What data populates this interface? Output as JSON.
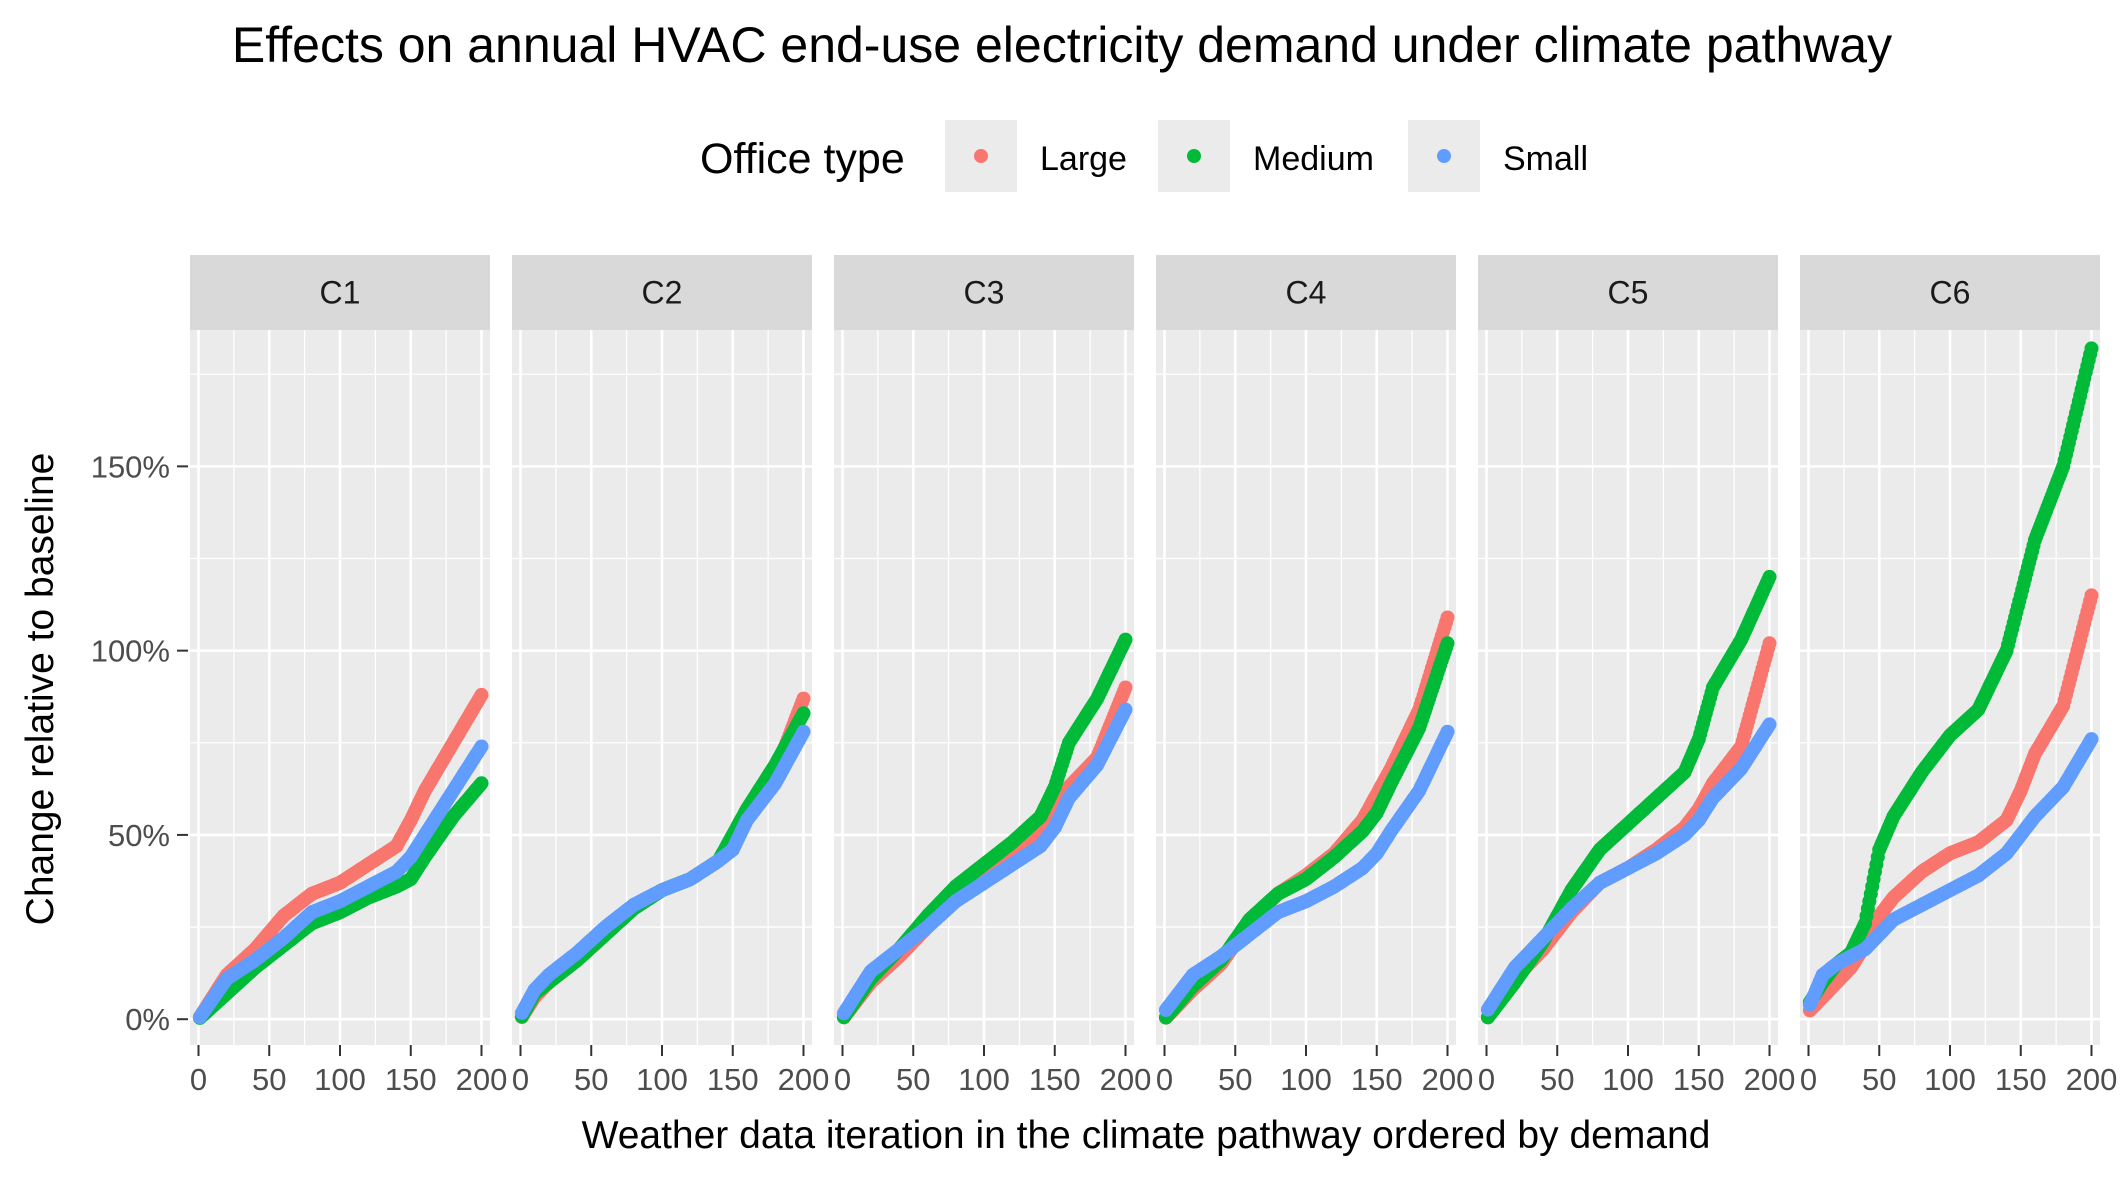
{
  "chart_data": {
    "type": "scatter",
    "title": "Effects on annual HVAC end-use electricity demand under climate pathway",
    "xlabel": "Weather data iteration in the climate pathway ordered by demand",
    "ylabel": "Change relative to baseline",
    "legend": {
      "title": "Office type",
      "placement": "top",
      "entries": [
        "Large",
        "Medium",
        "Small"
      ]
    },
    "colors": {
      "Large": "#f8766d",
      "Medium": "#00ba38",
      "Small": "#619cff"
    },
    "grid": true,
    "xlim": [
      -6,
      206
    ],
    "ylim": [
      -0.07,
      1.87
    ],
    "x_ticks": [
      0,
      50,
      100,
      150,
      200
    ],
    "x_tick_labels": [
      "0",
      "50",
      "100",
      "150",
      "200"
    ],
    "y_ticks": [
      0,
      0.5,
      1.0,
      1.5
    ],
    "y_tick_labels": [
      "0%",
      "50%",
      "100%",
      "150%"
    ],
    "n_points_per_series": 200,
    "panels": [
      {
        "label": "C1",
        "series": [
          {
            "name": "Large",
            "x": [
              0,
              20,
              40,
              60,
              80,
              100,
              120,
              140,
              150,
              160,
              180,
              200
            ],
            "y": [
              0.0,
              0.12,
              0.19,
              0.28,
              0.34,
              0.37,
              0.42,
              0.47,
              0.54,
              0.62,
              0.75,
              0.88
            ]
          },
          {
            "name": "Medium",
            "x": [
              0,
              20,
              40,
              60,
              80,
              100,
              120,
              140,
              150,
              160,
              180,
              200
            ],
            "y": [
              0.0,
              0.07,
              0.14,
              0.2,
              0.26,
              0.29,
              0.33,
              0.36,
              0.38,
              0.44,
              0.55,
              0.64
            ]
          },
          {
            "name": "Small",
            "x": [
              0,
              20,
              40,
              60,
              80,
              100,
              120,
              140,
              150,
              160,
              180,
              200
            ],
            "y": [
              0.0,
              0.11,
              0.16,
              0.22,
              0.29,
              0.32,
              0.36,
              0.4,
              0.44,
              0.5,
              0.62,
              0.74
            ]
          }
        ]
      },
      {
        "label": "C2",
        "series": [
          {
            "name": "Large",
            "x": [
              0,
              10,
              20,
              40,
              60,
              80,
              100,
              120,
              140,
              150,
              160,
              180,
              200
            ],
            "y": [
              0.0,
              0.06,
              0.1,
              0.16,
              0.23,
              0.3,
              0.35,
              0.38,
              0.43,
              0.48,
              0.56,
              0.67,
              0.87
            ]
          },
          {
            "name": "Medium",
            "x": [
              0,
              10,
              20,
              40,
              60,
              80,
              100,
              120,
              140,
              150,
              160,
              180,
              200
            ],
            "y": [
              0.0,
              0.07,
              0.1,
              0.16,
              0.23,
              0.3,
              0.35,
              0.38,
              0.43,
              0.5,
              0.57,
              0.69,
              0.83
            ]
          },
          {
            "name": "Small",
            "x": [
              0,
              10,
              20,
              40,
              60,
              80,
              100,
              120,
              140,
              150,
              160,
              180,
              200
            ],
            "y": [
              0.01,
              0.08,
              0.12,
              0.18,
              0.25,
              0.31,
              0.35,
              0.38,
              0.43,
              0.46,
              0.54,
              0.64,
              0.78
            ]
          }
        ]
      },
      {
        "label": "C3",
        "series": [
          {
            "name": "Large",
            "x": [
              0,
              20,
              40,
              60,
              80,
              100,
              120,
              140,
              150,
              160,
              180,
              200
            ],
            "y": [
              0.0,
              0.1,
              0.17,
              0.25,
              0.33,
              0.39,
              0.45,
              0.51,
              0.56,
              0.63,
              0.71,
              0.9
            ]
          },
          {
            "name": "Medium",
            "x": [
              0,
              20,
              40,
              60,
              80,
              100,
              120,
              140,
              150,
              160,
              180,
              200
            ],
            "y": [
              0.0,
              0.11,
              0.19,
              0.28,
              0.36,
              0.42,
              0.48,
              0.55,
              0.63,
              0.75,
              0.87,
              1.03
            ]
          },
          {
            "name": "Small",
            "x": [
              0,
              20,
              40,
              60,
              80,
              100,
              120,
              140,
              150,
              160,
              180,
              200
            ],
            "y": [
              0.01,
              0.13,
              0.19,
              0.25,
              0.32,
              0.37,
              0.42,
              0.47,
              0.52,
              0.6,
              0.69,
              0.84
            ]
          }
        ]
      },
      {
        "label": "C4",
        "series": [
          {
            "name": "Large",
            "x": [
              0,
              20,
              40,
              60,
              80,
              100,
              120,
              140,
              150,
              160,
              180,
              200
            ],
            "y": [
              0.0,
              0.08,
              0.15,
              0.26,
              0.34,
              0.39,
              0.45,
              0.54,
              0.61,
              0.68,
              0.84,
              1.09
            ]
          },
          {
            "name": "Medium",
            "x": [
              0,
              20,
              40,
              60,
              80,
              100,
              120,
              140,
              150,
              160,
              180,
              200
            ],
            "y": [
              0.0,
              0.09,
              0.16,
              0.27,
              0.34,
              0.38,
              0.44,
              0.51,
              0.56,
              0.64,
              0.79,
              1.02
            ]
          },
          {
            "name": "Small",
            "x": [
              0,
              20,
              40,
              60,
              80,
              100,
              120,
              140,
              150,
              160,
              180,
              200
            ],
            "y": [
              0.02,
              0.12,
              0.17,
              0.23,
              0.29,
              0.32,
              0.36,
              0.41,
              0.45,
              0.51,
              0.62,
              0.78
            ]
          }
        ]
      },
      {
        "label": "C5",
        "series": [
          {
            "name": "Large",
            "x": [
              0,
              20,
              40,
              60,
              80,
              100,
              120,
              140,
              150,
              160,
              180,
              200
            ],
            "y": [
              0.0,
              0.11,
              0.19,
              0.29,
              0.37,
              0.41,
              0.46,
              0.52,
              0.57,
              0.64,
              0.74,
              1.02
            ]
          },
          {
            "name": "Medium",
            "x": [
              0,
              20,
              40,
              60,
              80,
              100,
              120,
              140,
              150,
              160,
              180,
              200
            ],
            "y": [
              0.0,
              0.1,
              0.21,
              0.35,
              0.46,
              0.53,
              0.6,
              0.67,
              0.76,
              0.9,
              1.03,
              1.2
            ]
          },
          {
            "name": "Small",
            "x": [
              0,
              20,
              40,
              60,
              80,
              100,
              120,
              140,
              150,
              160,
              180,
              200
            ],
            "y": [
              0.02,
              0.14,
              0.22,
              0.3,
              0.37,
              0.41,
              0.45,
              0.5,
              0.54,
              0.6,
              0.68,
              0.8
            ]
          }
        ]
      },
      {
        "label": "C6",
        "series": [
          {
            "name": "Large",
            "x": [
              0,
              10,
              20,
              30,
              40,
              50,
              60,
              80,
              100,
              120,
              140,
              150,
              160,
              180,
              200
            ],
            "y": [
              0.02,
              0.06,
              0.1,
              0.14,
              0.2,
              0.28,
              0.33,
              0.4,
              0.45,
              0.48,
              0.54,
              0.62,
              0.72,
              0.85,
              1.15
            ]
          },
          {
            "name": "Medium",
            "x": [
              0,
              10,
              20,
              30,
              40,
              50,
              60,
              80,
              100,
              120,
              140,
              150,
              160,
              180,
              200
            ],
            "y": [
              0.04,
              0.1,
              0.15,
              0.18,
              0.26,
              0.46,
              0.55,
              0.67,
              0.77,
              0.84,
              1.0,
              1.15,
              1.3,
              1.5,
              1.82
            ]
          },
          {
            "name": "Small",
            "x": [
              0,
              10,
              20,
              30,
              40,
              50,
              60,
              80,
              100,
              120,
              140,
              150,
              160,
              180,
              200
            ],
            "y": [
              0.03,
              0.12,
              0.15,
              0.17,
              0.19,
              0.23,
              0.27,
              0.31,
              0.35,
              0.39,
              0.45,
              0.5,
              0.55,
              0.63,
              0.76
            ]
          }
        ]
      }
    ]
  }
}
